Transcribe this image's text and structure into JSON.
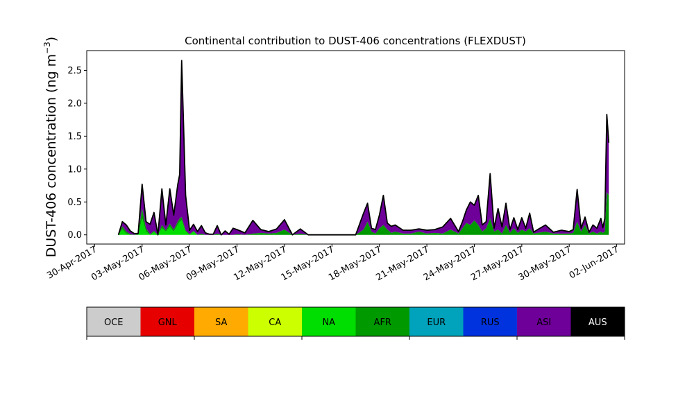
{
  "chart_data": [
    {
      "type": "area",
      "stacked": true,
      "title": "Continental contribution to DUST-406 concentrations (FLEXDUST)",
      "ylabel": "DUST-406 concentration (ng m",
      "ylabel_superscript": "−3",
      "ylabel_close": ")",
      "xlabel": "",
      "xlim": [
        "2017-04-29T12:00",
        "2017-06-02T12:00"
      ],
      "ylim": [
        -0.14,
        2.8
      ],
      "grid": false,
      "x_ticks": [
        "2017-04-30",
        "2017-05-03",
        "2017-05-06",
        "2017-05-09",
        "2017-05-12",
        "2017-05-15",
        "2017-05-18",
        "2017-05-21",
        "2017-05-24",
        "2017-05-27",
        "2017-05-30",
        "2017-06-02"
      ],
      "x_tick_labels": [
        "30-Apr-2017",
        "03-May-2017",
        "06-May-2017",
        "09-May-2017",
        "12-May-2017",
        "15-May-2017",
        "18-May-2017",
        "21-May-2017",
        "24-May-2017",
        "27-May-2017",
        "30-May-2017",
        "02-Jun-2017"
      ],
      "y_ticks": [
        0.0,
        0.5,
        1.0,
        1.5,
        2.0,
        2.5
      ],
      "y_tick_labels": [
        "0.0",
        "0.5",
        "1.0",
        "1.5",
        "2.0",
        "2.5"
      ],
      "x": [
        "2017-05-01T12:00",
        "2017-05-01T18:00",
        "2017-05-02T00:00",
        "2017-05-02T06:00",
        "2017-05-02T12:00",
        "2017-05-02T18:00",
        "2017-05-03T00:00",
        "2017-05-03T06:00",
        "2017-05-03T12:00",
        "2017-05-03T18:00",
        "2017-05-04T00:00",
        "2017-05-04T06:00",
        "2017-05-04T12:00",
        "2017-05-04T18:00",
        "2017-05-05T00:00",
        "2017-05-05T06:00",
        "2017-05-05T09:00",
        "2017-05-05T12:00",
        "2017-05-05T18:00",
        "2017-05-06T00:00",
        "2017-05-06T06:00",
        "2017-05-06T12:00",
        "2017-05-06T18:00",
        "2017-05-07T00:00",
        "2017-05-07T06:00",
        "2017-05-07T12:00",
        "2017-05-07T18:00",
        "2017-05-08T00:00",
        "2017-05-08T06:00",
        "2017-05-08T12:00",
        "2017-05-08T18:00",
        "2017-05-09T00:00",
        "2017-05-09T12:00",
        "2017-05-10T00:00",
        "2017-05-10T12:00",
        "2017-05-11T00:00",
        "2017-05-11T12:00",
        "2017-05-12T00:00",
        "2017-05-12T12:00",
        "2017-05-13T00:00",
        "2017-05-13T12:00",
        "2017-05-14T00:00",
        "2017-05-14T12:00",
        "2017-05-15T00:00",
        "2017-05-15T12:00",
        "2017-05-16T00:00",
        "2017-05-16T12:00",
        "2017-05-17T00:00",
        "2017-05-17T06:00",
        "2017-05-17T12:00",
        "2017-05-17T18:00",
        "2017-05-18T00:00",
        "2017-05-18T06:00",
        "2017-05-18T12:00",
        "2017-05-18T18:00",
        "2017-05-19T00:00",
        "2017-05-19T12:00",
        "2017-05-20T00:00",
        "2017-05-20T12:00",
        "2017-05-21T00:00",
        "2017-05-21T12:00",
        "2017-05-22T00:00",
        "2017-05-22T12:00",
        "2017-05-23T00:00",
        "2017-05-23T06:00",
        "2017-05-23T12:00",
        "2017-05-23T18:00",
        "2017-05-24T00:00",
        "2017-05-24T06:00",
        "2017-05-24T12:00",
        "2017-05-24T18:00",
        "2017-05-25T00:00",
        "2017-05-25T06:00",
        "2017-05-25T12:00",
        "2017-05-25T18:00",
        "2017-05-26T00:00",
        "2017-05-26T06:00",
        "2017-05-26T12:00",
        "2017-05-26T18:00",
        "2017-05-27T00:00",
        "2017-05-27T06:00",
        "2017-05-27T12:00",
        "2017-05-27T18:00",
        "2017-05-28T00:00",
        "2017-05-28T12:00",
        "2017-05-29T00:00",
        "2017-05-29T12:00",
        "2017-05-30T00:00",
        "2017-05-30T06:00",
        "2017-05-30T12:00",
        "2017-05-30T18:00",
        "2017-05-31T00:00",
        "2017-05-31T06:00",
        "2017-05-31T12:00",
        "2017-05-31T18:00",
        "2017-06-01T00:00",
        "2017-06-01T03:00",
        "2017-06-01T06:00",
        "2017-06-01T09:00",
        "2017-06-01T12:00"
      ],
      "series": [
        {
          "name": "NA",
          "color": "#00dd00",
          "values": [
            0.0,
            0.08,
            0.02,
            0.0,
            0.0,
            0.0,
            0.25,
            0.05,
            0.0,
            0.04,
            0.0,
            0.1,
            0.05,
            0.12,
            0.05,
            0.15,
            0.2,
            0.22,
            0.05,
            0.0,
            0.05,
            0.0,
            0.0,
            0.0,
            0.0,
            0.0,
            0.0,
            0.0,
            0.0,
            0.0,
            0.0,
            0.0,
            0.0,
            0.0,
            0.0,
            0.0,
            0.0,
            0.0,
            0.0,
            0.0,
            0.0,
            0.0,
            0.0,
            0.0,
            0.0,
            0.0,
            0.0,
            0.0,
            0.0,
            0.0,
            0.0,
            0.0,
            0.0,
            0.0,
            0.0,
            0.0,
            0.0,
            0.0,
            0.0,
            0.0,
            0.0,
            0.0,
            0.0,
            0.0,
            0.0,
            0.0,
            0.0,
            0.0,
            0.0,
            0.0,
            0.0,
            0.0,
            0.0,
            0.0,
            0.0,
            0.0,
            0.0,
            0.0,
            0.0,
            0.0,
            0.0,
            0.0,
            0.0,
            0.0,
            0.0,
            0.0,
            0.0,
            0.0,
            0.0,
            0.0,
            0.0,
            0.0,
            0.0,
            0.0,
            0.0,
            0.0,
            0.0,
            0.0,
            0.0,
            0.0
          ]
        },
        {
          "name": "AFR",
          "color": "#009900",
          "values": [
            0.0,
            0.05,
            0.03,
            0.01,
            0.0,
            0.02,
            0.15,
            0.05,
            0.01,
            0.02,
            0.0,
            0.05,
            0.02,
            0.05,
            0.03,
            0.05,
            0.05,
            0.05,
            0.02,
            0.01,
            0.01,
            0.0,
            0.02,
            0.0,
            0.0,
            0.0,
            0.02,
            0.0,
            0.0,
            0.0,
            0.0,
            0.01,
            0.0,
            0.02,
            0.03,
            0.02,
            0.03,
            0.08,
            0.0,
            0.02,
            0.0,
            0.0,
            0.0,
            0.0,
            0.0,
            0.0,
            0.0,
            0.08,
            0.2,
            0.05,
            0.02,
            0.1,
            0.15,
            0.08,
            0.03,
            0.05,
            0.02,
            0.02,
            0.05,
            0.02,
            0.03,
            0.02,
            0.08,
            0.02,
            0.1,
            0.18,
            0.15,
            0.22,
            0.15,
            0.05,
            0.1,
            0.25,
            0.05,
            0.08,
            0.02,
            0.15,
            0.03,
            0.1,
            0.03,
            0.08,
            0.05,
            0.1,
            0.02,
            0.03,
            0.05,
            0.02,
            0.02,
            0.02,
            0.03,
            0.2,
            0.05,
            0.15,
            0.02,
            0.05,
            0.02,
            0.05,
            0.03,
            0.05,
            0.65,
            0.6
          ]
        },
        {
          "name": "ASI",
          "color": "#6e0099",
          "values": [
            0.0,
            0.06,
            0.1,
            0.05,
            0.02,
            0.0,
            0.35,
            0.1,
            0.15,
            0.26,
            0.0,
            0.45,
            0.08,
            0.45,
            0.2,
            0.55,
            0.65,
            2.35,
            0.48,
            0.06,
            0.1,
            0.05,
            0.12,
            0.03,
            0.01,
            0.01,
            0.12,
            0.0,
            0.06,
            0.01,
            0.1,
            0.07,
            0.03,
            0.2,
            0.05,
            0.03,
            0.06,
            0.15,
            0.0,
            0.07,
            0.0,
            0.0,
            0.0,
            0.0,
            0.0,
            0.0,
            0.0,
            0.25,
            0.28,
            0.05,
            0.06,
            0.2,
            0.45,
            0.1,
            0.1,
            0.1,
            0.05,
            0.05,
            0.04,
            0.05,
            0.05,
            0.1,
            0.17,
            0.03,
            0.1,
            0.2,
            0.35,
            0.23,
            0.45,
            0.1,
            0.1,
            0.68,
            0.05,
            0.32,
            0.1,
            0.33,
            0.05,
            0.16,
            0.05,
            0.18,
            0.05,
            0.23,
            0.02,
            0.05,
            0.1,
            0.02,
            0.05,
            0.03,
            0.05,
            0.49,
            0.05,
            0.12,
            0.02,
            0.1,
            0.08,
            0.2,
            0.08,
            0.2,
            1.18,
            0.8
          ]
        },
        {
          "name": "AUS",
          "color": "#000000",
          "values": [
            0.0,
            0.01,
            0.0,
            0.0,
            0.0,
            0.0,
            0.02,
            0.0,
            0.0,
            0.02,
            0.0,
            0.1,
            0.0,
            0.08,
            0.02,
            0.01,
            0.02,
            0.03,
            0.05,
            0.0,
            0.0,
            0.0,
            0.0,
            0.0,
            0.0,
            0.0,
            0.0,
            0.0,
            0.0,
            0.0,
            0.0,
            0.0,
            0.0,
            0.0,
            0.0,
            0.0,
            0.0,
            0.0,
            0.0,
            0.0,
            0.0,
            0.0,
            0.0,
            0.0,
            0.0,
            0.0,
            0.0,
            0.0,
            0.0,
            0.0,
            0.0,
            0.0,
            0.0,
            0.0,
            0.0,
            0.0,
            0.0,
            0.0,
            0.0,
            0.0,
            0.0,
            0.0,
            0.0,
            0.0,
            0.0,
            0.0,
            0.0,
            0.0,
            0.0,
            0.0,
            0.0,
            0.0,
            0.0,
            0.0,
            0.0,
            0.0,
            0.0,
            0.0,
            0.0,
            0.0,
            0.0,
            0.0,
            0.0,
            0.0,
            0.0,
            0.0,
            0.0,
            0.0,
            0.0,
            0.0,
            0.0,
            0.0,
            0.0,
            0.0,
            0.0,
            0.0,
            0.0,
            0.0,
            0.0,
            0.0
          ]
        }
      ]
    },
    {
      "type": "legend-colorbar",
      "categories": [
        "OCE",
        "GNL",
        "SA",
        "CA",
        "NA",
        "AFR",
        "EUR",
        "RUS",
        "ASI",
        "AUS"
      ],
      "colors": [
        "#cccccc",
        "#e60000",
        "#ffaa00",
        "#ccff00",
        "#00dd00",
        "#009900",
        "#00a3bb",
        "#0033dd",
        "#6e0099",
        "#000000"
      ],
      "label_colors": [
        "#000000",
        "#000000",
        "#000000",
        "#000000",
        "#000000",
        "#000000",
        "#000000",
        "#000000",
        "#000000",
        "#ffffff"
      ]
    }
  ]
}
